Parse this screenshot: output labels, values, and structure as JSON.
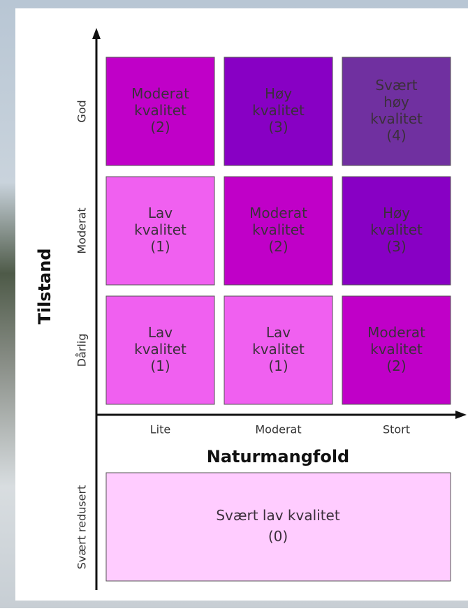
{
  "y_axis": {
    "title": "Tilstand",
    "levels": [
      "God",
      "Moderat",
      "Dårlig"
    ],
    "extra_level": "Svært redusert"
  },
  "x_axis": {
    "title": "Naturmangfold",
    "levels": [
      "Lite",
      "Moderat",
      "Stort"
    ]
  },
  "cells": [
    [
      {
        "lines": [
          "Moderat",
          "kvalitet",
          "(2)"
        ]
      },
      {
        "lines": [
          "Høy",
          "kvalitet",
          "(3)"
        ]
      },
      {
        "lines": [
          "Svært",
          "høy",
          "kvalitet",
          "(4)"
        ]
      }
    ],
    [
      {
        "lines": [
          "Lav",
          "kvalitet",
          "(1)"
        ]
      },
      {
        "lines": [
          "Moderat",
          "kvalitet",
          "(2)"
        ]
      },
      {
        "lines": [
          "Høy",
          "kvalitet",
          "(3)"
        ]
      }
    ],
    [
      {
        "lines": [
          "Lav",
          "kvalitet",
          "(1)"
        ]
      },
      {
        "lines": [
          "Lav",
          "kvalitet",
          "(1)"
        ]
      },
      {
        "lines": [
          "Moderat",
          "kvalitet",
          "(2)"
        ]
      }
    ]
  ],
  "bottom_cell": {
    "lines": [
      "Svært lav kvalitet",
      "(0)"
    ]
  }
}
